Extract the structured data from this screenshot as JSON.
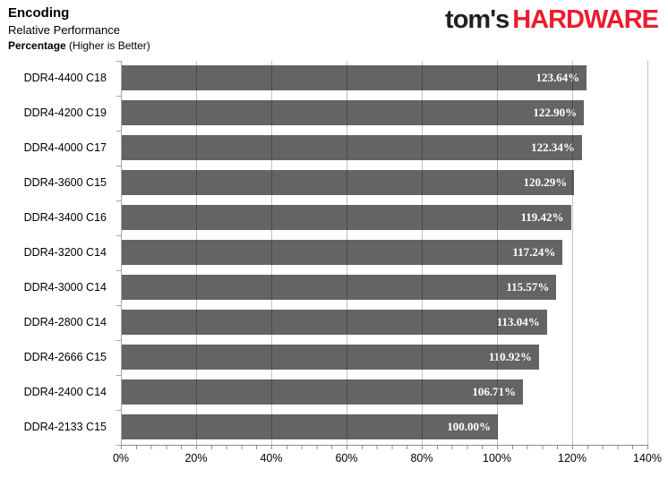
{
  "header": {
    "title": "Encoding",
    "subtitle": "Relative Performance",
    "metric_label": "Percentage",
    "metric_note": " (Higher is Better)"
  },
  "logo": {
    "part1": "tom's",
    "part2": "HARDWARE",
    "color_dark": "#231f20",
    "color_red": "#ed1b2f"
  },
  "chart_data": {
    "type": "bar",
    "orientation": "horizontal",
    "title": "Encoding",
    "subtitle": "Relative Performance",
    "ylabel": "",
    "xlabel": "Percentage (Higher is Better)",
    "categories": [
      "DDR4-4400 C18",
      "DDR4-4200 C19",
      "DDR4-4000 C17",
      "DDR4-3600 C15",
      "DDR4-3400 C16",
      "DDR4-3200 C14",
      "DDR4-3000 C14",
      "DDR4-2800 C14",
      "DDR4-2666 C15",
      "DDR4-2400 C14",
      "DDR4-2133 C15"
    ],
    "values": [
      123.64,
      122.9,
      122.34,
      120.29,
      119.42,
      117.24,
      115.57,
      113.04,
      110.92,
      106.71,
      100.0
    ],
    "value_labels": [
      "123.64%",
      "122.90%",
      "122.34%",
      "120.29%",
      "119.42%",
      "117.24%",
      "115.57%",
      "113.04%",
      "110.92%",
      "106.71%",
      "100.00%"
    ],
    "x_ticks": [
      "0%",
      "20%",
      "40%",
      "60%",
      "80%",
      "100%",
      "120%",
      "140%"
    ],
    "xlim": [
      0,
      140
    ],
    "minor_tick_step": 4,
    "grid": true,
    "bar_color": "#666366",
    "value_label_color": "#ffffff",
    "legend": "none"
  }
}
